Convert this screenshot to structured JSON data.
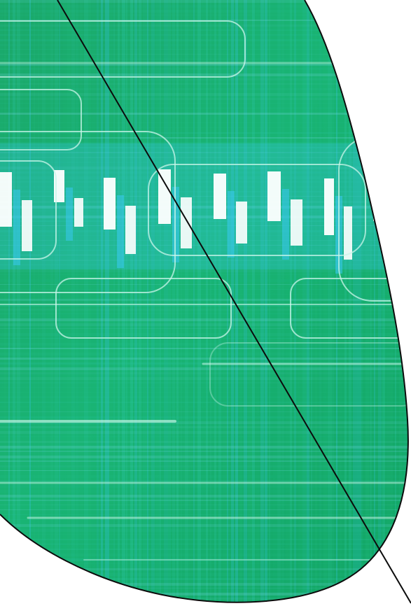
{
  "artwork": {
    "kind": "abstract decorative cover graphic",
    "shape": "curved leaf/blob shape cropped by page edges",
    "colors": {
      "background": "#ffffff",
      "outline": "#0c0c0c",
      "base_green": "#16b06a",
      "mid_green": "#1fb877",
      "teal": "#2ec9a8",
      "cyan": "#38c8ee",
      "light_cyan": "#7fe0f5",
      "bar_white": "#ffffff",
      "line_light": "#bdf3e6"
    }
  }
}
